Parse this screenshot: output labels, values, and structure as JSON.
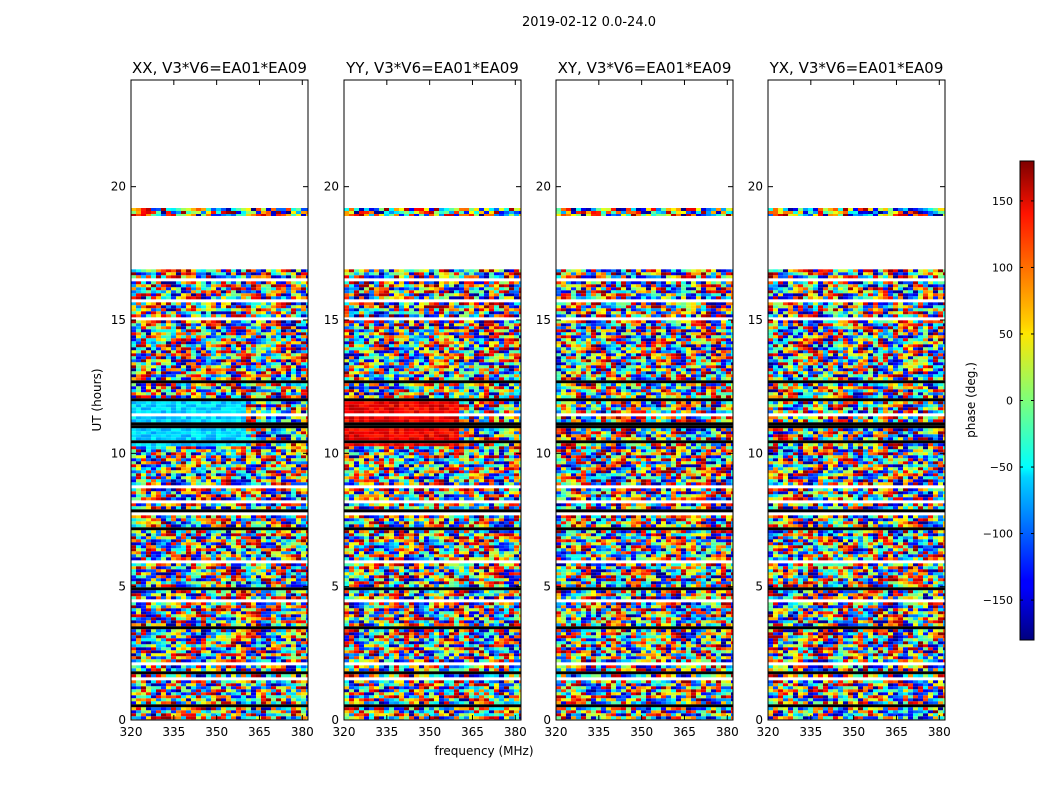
{
  "chart_data": {
    "type": "heatmap",
    "suptitle": "2019-02-12 0.0-24.0",
    "xlabel": "frequency (MHz)",
    "ylabel": "UT (hours)",
    "xlim": [
      320,
      382
    ],
    "ylim": [
      0,
      24
    ],
    "xticks": [
      320,
      335,
      350,
      365,
      380
    ],
    "yticks": [
      0,
      5,
      10,
      15,
      20
    ],
    "colormap": "jet",
    "colorbar": {
      "label": "phase (deg.)",
      "range": [
        -180,
        180
      ],
      "ticks": [
        -150,
        -100,
        -50,
        0,
        50,
        100,
        150
      ],
      "tick_labels": [
        "−150",
        "−100",
        "−50",
        "0",
        "50",
        "100",
        "150"
      ]
    },
    "panels": [
      {
        "title": "XX, V3*V6=EA01*EA09",
        "xticks": [
          320,
          335,
          350,
          365,
          380
        ],
        "yticks": [
          0,
          5,
          10,
          15,
          20
        ]
      },
      {
        "title": "YY, V3*V6=EA01*EA09",
        "xticks": [
          320,
          335,
          350,
          365,
          380
        ],
        "yticks": [
          0,
          5,
          10,
          15,
          20
        ]
      },
      {
        "title": "XY, V3*V6=EA01*EA09",
        "xticks": [
          320,
          335,
          350,
          365,
          380
        ],
        "yticks": [
          0,
          5,
          10,
          15,
          20
        ]
      },
      {
        "title": "YX, V3*V6=EA01*EA09",
        "xticks": [
          320,
          335,
          350,
          365,
          380
        ],
        "yticks": [
          0,
          5,
          10,
          15,
          20
        ]
      }
    ],
    "data_rows_ut": [
      [
        0.0,
        16.9
      ],
      [
        18.9,
        19.2
      ]
    ],
    "blank_ut": [
      [
        16.9,
        18.9
      ],
      [
        19.2,
        24.0
      ]
    ],
    "coherent_phase_block": {
      "panels": [
        "XX, V3*V6=EA01*EA09",
        "YY, V3*V6=EA01*EA09"
      ],
      "ut": [
        10.3,
        11.9
      ],
      "freq_mhz": [
        320,
        361
      ],
      "phase_deg": {
        "XX, V3*V6=EA01*EA09": -60,
        "YY, V3*V6=EA01*EA09": 140
      }
    }
  }
}
